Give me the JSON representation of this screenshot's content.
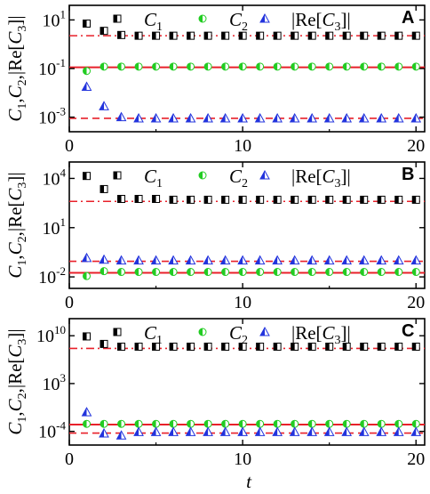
{
  "chart_data": [
    {
      "type": "scatter",
      "panel": "A",
      "ylabel": "C_1,C_2,|Re[C_3]|",
      "yscale": "log",
      "xlim": [
        0,
        20.5
      ],
      "ylim_log10": [
        -3.6,
        1.6
      ],
      "xticks": [
        0,
        10,
        20
      ],
      "yticks_log10": [
        1,
        -1,
        -3
      ],
      "ytick_labels": [
        [
          "10",
          "1"
        ],
        [
          "10",
          "-1"
        ],
        [
          "10",
          "-3"
        ]
      ],
      "series": [
        {
          "name": "C_1",
          "marker": "half-square",
          "color": "#000000",
          "x": [
            1,
            2,
            3,
            4,
            5,
            6,
            7,
            8,
            9,
            10,
            11,
            12,
            13,
            14,
            15,
            16,
            17,
            18,
            19,
            20
          ],
          "y_log10": [
            0.85,
            0.55,
            0.38,
            0.35,
            0.35,
            0.35,
            0.35,
            0.35,
            0.35,
            0.35,
            0.35,
            0.35,
            0.35,
            0.35,
            0.35,
            0.35,
            0.35,
            0.35,
            0.35,
            0.35
          ]
        },
        {
          "name": "C_2",
          "marker": "half-circle",
          "color": "#22cc22",
          "x": [
            1,
            2,
            3,
            4,
            5,
            6,
            7,
            8,
            9,
            10,
            11,
            12,
            13,
            14,
            15,
            16,
            17,
            18,
            19,
            20
          ],
          "y_log10": [
            -1.1,
            -0.92,
            -0.92,
            -0.92,
            -0.92,
            -0.92,
            -0.92,
            -0.92,
            -0.92,
            -0.92,
            -0.92,
            -0.92,
            -0.92,
            -0.92,
            -0.92,
            -0.92,
            -0.92,
            -0.92,
            -0.92,
            -0.92
          ]
        },
        {
          "name": "|Re[C_3]|",
          "marker": "half-triangle",
          "color": "#2233dd",
          "x": [
            1,
            2,
            3,
            4,
            5,
            6,
            7,
            8,
            9,
            10,
            11,
            12,
            13,
            14,
            15,
            16,
            17,
            18,
            19,
            20
          ],
          "y_log10": [
            -1.75,
            -2.55,
            -3.0,
            -3.05,
            -3.05,
            -3.05,
            -3.05,
            -3.05,
            -3.05,
            -3.05,
            -3.05,
            -3.05,
            -3.05,
            -3.05,
            -3.05,
            -3.05,
            -3.05,
            -3.05,
            -3.05,
            -3.05
          ]
        }
      ],
      "ref_lines": [
        {
          "style": "dashdot",
          "y_log10": 0.35
        },
        {
          "style": "solid",
          "y_log10": -0.95
        },
        {
          "style": "dashed",
          "y_log10": -3.05
        }
      ]
    },
    {
      "type": "scatter",
      "panel": "B",
      "ylabel": "C_1,C_2,|Re[C_3]|",
      "yscale": "log",
      "xlim": [
        0,
        20.5
      ],
      "ylim_log10": [
        -2.7,
        5.0
      ],
      "xticks": [
        0,
        10,
        20
      ],
      "yticks_log10": [
        4,
        1,
        -2
      ],
      "ytick_labels": [
        [
          "10",
          "4"
        ],
        [
          "10",
          "1"
        ],
        [
          "10",
          "-2"
        ]
      ],
      "series": [
        {
          "name": "C_1",
          "marker": "half-square",
          "color": "#000000",
          "x": [
            1,
            2,
            3,
            4,
            5,
            6,
            7,
            8,
            9,
            10,
            11,
            12,
            13,
            14,
            15,
            16,
            17,
            18,
            19,
            20
          ],
          "y_log10": [
            4.15,
            3.35,
            2.75,
            2.75,
            2.75,
            2.7,
            2.7,
            2.7,
            2.7,
            2.7,
            2.7,
            2.7,
            2.7,
            2.7,
            2.7,
            2.7,
            2.7,
            2.7,
            2.7,
            2.7
          ]
        },
        {
          "name": "C_2",
          "marker": "half-circle",
          "color": "#22cc22",
          "x": [
            1,
            2,
            3,
            4,
            5,
            6,
            7,
            8,
            9,
            10,
            11,
            12,
            13,
            14,
            15,
            16,
            17,
            18,
            19,
            20
          ],
          "y_log10": [
            -1.95,
            -1.65,
            -1.7,
            -1.7,
            -1.7,
            -1.7,
            -1.7,
            -1.7,
            -1.7,
            -1.7,
            -1.7,
            -1.7,
            -1.7,
            -1.7,
            -1.7,
            -1.7,
            -1.7,
            -1.7,
            -1.7,
            -1.7
          ]
        },
        {
          "name": "|Re[C_3]|",
          "marker": "half-triangle",
          "color": "#2233dd",
          "x": [
            1,
            2,
            3,
            4,
            5,
            6,
            7,
            8,
            9,
            10,
            11,
            12,
            13,
            14,
            15,
            16,
            17,
            18,
            19,
            20
          ],
          "y_log10": [
            -0.85,
            -0.95,
            -1.0,
            -1.0,
            -1.0,
            -1.0,
            -1.0,
            -1.0,
            -1.0,
            -1.0,
            -1.0,
            -1.0,
            -1.0,
            -1.0,
            -1.0,
            -1.0,
            -1.0,
            -1.0,
            -1.0,
            -1.0
          ]
        }
      ],
      "ref_lines": [
        {
          "style": "dashdot",
          "y_log10": 2.6
        },
        {
          "style": "solid",
          "y_log10": -1.75
        },
        {
          "style": "dashed",
          "y_log10": -1.05
        }
      ]
    },
    {
      "type": "scatter",
      "panel": "C",
      "ylabel": "C_1,C_2,|Re[C_3]|",
      "yscale": "log",
      "xlim": [
        0,
        20.5
      ],
      "ylim_log10": [
        -6.0,
        12.5
      ],
      "xticks": [
        0,
        10,
        20
      ],
      "yticks_log10": [
        10,
        3,
        -4
      ],
      "ytick_labels": [
        [
          "10",
          "10"
        ],
        [
          "10",
          "3"
        ],
        [
          "10",
          "-4"
        ]
      ],
      "series": [
        {
          "name": "C_1",
          "marker": "half-square",
          "color": "#000000",
          "x": [
            1,
            2,
            3,
            4,
            5,
            6,
            7,
            8,
            9,
            10,
            11,
            12,
            13,
            14,
            15,
            16,
            17,
            18,
            19,
            20
          ],
          "y_log10": [
            9.9,
            8.8,
            8.4,
            8.4,
            8.4,
            8.4,
            8.4,
            8.4,
            8.4,
            8.4,
            8.4,
            8.4,
            8.4,
            8.4,
            8.4,
            8.4,
            8.4,
            8.4,
            8.4,
            8.4
          ]
        },
        {
          "name": "C_2",
          "marker": "half-circle",
          "color": "#22cc22",
          "x": [
            1,
            2,
            3,
            4,
            5,
            6,
            7,
            8,
            9,
            10,
            11,
            12,
            13,
            14,
            15,
            16,
            17,
            18,
            19,
            20
          ],
          "y_log10": [
            -2.9,
            -2.9,
            -2.9,
            -2.9,
            -2.9,
            -2.9,
            -2.9,
            -2.9,
            -2.9,
            -2.9,
            -2.9,
            -2.9,
            -2.9,
            -2.9,
            -2.9,
            -2.9,
            -2.9,
            -2.9,
            -2.9,
            -2.9
          ]
        },
        {
          "name": "|Re[C_3]|",
          "marker": "half-triangle",
          "color": "#2233dd",
          "x": [
            1,
            2,
            3,
            4,
            5,
            6,
            7,
            8,
            9,
            10,
            11,
            12,
            13,
            14,
            15,
            16,
            17,
            18,
            19,
            20
          ],
          "y_log10": [
            -1.2,
            -4.3,
            -4.6,
            -4.1,
            -4.1,
            -4.1,
            -4.1,
            -4.1,
            -4.1,
            -4.1,
            -4.1,
            -4.1,
            -4.1,
            -4.1,
            -4.1,
            -4.1,
            -4.1,
            -4.1,
            -4.1,
            -4.1
          ]
        }
      ],
      "ref_lines": [
        {
          "style": "dashdot",
          "y_log10": 8.15
        },
        {
          "style": "solid",
          "y_log10": -3.0
        },
        {
          "style": "dashed",
          "y_log10": -4.25
        }
      ]
    }
  ],
  "xlabel": "t",
  "legend": [
    {
      "name": "C_1",
      "marker": "half-square"
    },
    {
      "name": "C_2",
      "marker": "half-circle"
    },
    {
      "name": "|Re[C_3]|",
      "marker": "half-triangle"
    }
  ],
  "colors": {
    "axis": "#000000",
    "ref_line": "#e8202a",
    "c1": "#000000",
    "c2": "#22cc22",
    "c3": "#2233dd"
  }
}
